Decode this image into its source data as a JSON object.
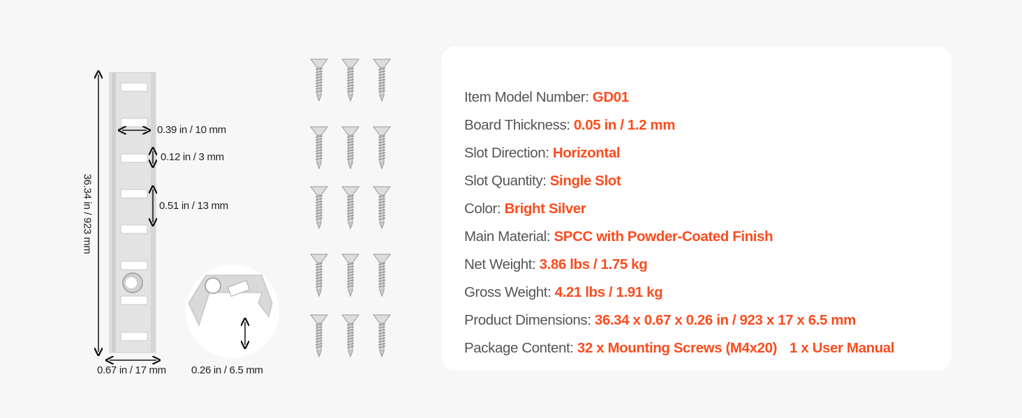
{
  "dimensions": {
    "length": "36.34 in / 923 mm",
    "slot_width": "0.39 in / 10 mm",
    "slot_height": "0.12 in / 3 mm",
    "slot_pitch": "0.51 in / 13 mm",
    "rail_width": "0.67 in / 17 mm",
    "rail_depth": "0.26 in / 6.5 mm"
  },
  "specs": [
    {
      "label": "Item Model Number: ",
      "value": "GD01"
    },
    {
      "label": "Board Thickness: ",
      "value": "0.05 in / 1.2 mm"
    },
    {
      "label": "Slot Direction: ",
      "value": "Horizontal"
    },
    {
      "label": "Slot Quantity: ",
      "value": "Single Slot"
    },
    {
      "label": "Color: ",
      "value": "Bright Silver"
    },
    {
      "label": "Main Material: ",
      "value": "SPCC with Powder-Coated Finish"
    },
    {
      "label": "Net Weight: ",
      "value": "3.86 lbs / 1.75 kg"
    },
    {
      "label": "Gross Weight: ",
      "value": "4.21 lbs / 1.91 kg"
    },
    {
      "label": "Product Dimensions: ",
      "value": "36.34 x 0.67 x 0.26 in / 923 x 17 x 6.5 mm"
    },
    {
      "label": "Package Content: ",
      "value": "32 x Mounting Screws (M4x20)",
      "value2": "1 x User Manual"
    }
  ],
  "colors": {
    "accent": "#fa4d1f",
    "label": "#555555",
    "background": "#f7f7f7",
    "card": "#ffffff"
  }
}
